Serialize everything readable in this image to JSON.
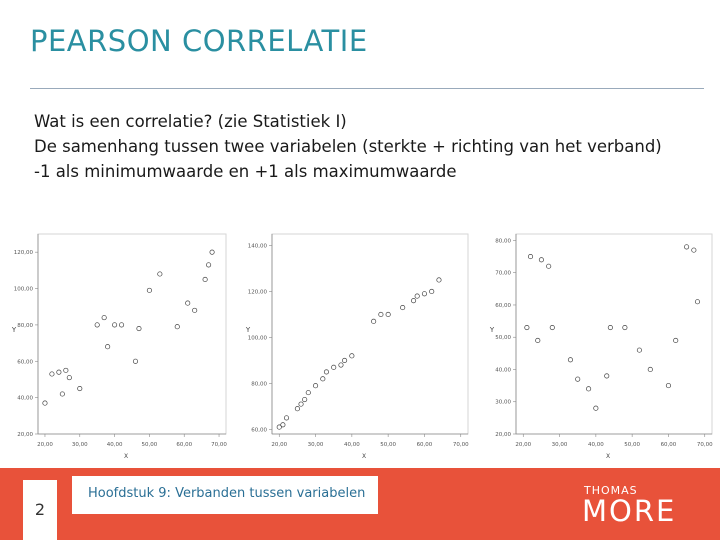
{
  "slide": {
    "title": "PEARSON CORRELATIE",
    "bullets": [
      "Wat is een correlatie? (zie Statistiek I)",
      "De samenhang tussen twee variabelen (sterkte + richting van het verband)",
      "-1 als minimumwaarde en +1 als maximumwaarde"
    ]
  },
  "chart_data": [
    {
      "type": "scatter",
      "xlabel": "X",
      "ylabel": "Y",
      "xticks": [
        "20,00",
        "30,00",
        "40,00",
        "50,00",
        "60,00",
        "70,00"
      ],
      "yticks": [
        "20,00",
        "40,00",
        "60,00",
        "80,00",
        "100,00",
        "120,00"
      ],
      "xlim": [
        18,
        72
      ],
      "ylim": [
        20,
        130
      ],
      "points": [
        [
          20,
          37
        ],
        [
          22,
          53
        ],
        [
          24,
          54
        ],
        [
          25,
          42
        ],
        [
          26,
          55
        ],
        [
          27,
          51
        ],
        [
          30,
          45
        ],
        [
          35,
          80
        ],
        [
          37,
          84
        ],
        [
          38,
          68
        ],
        [
          40,
          80
        ],
        [
          42,
          80
        ],
        [
          46,
          60
        ],
        [
          47,
          78
        ],
        [
          50,
          99
        ],
        [
          53,
          108
        ],
        [
          58,
          79
        ],
        [
          61,
          92
        ],
        [
          63,
          88
        ],
        [
          66,
          105
        ],
        [
          67,
          113
        ],
        [
          68,
          120
        ]
      ]
    },
    {
      "type": "scatter",
      "xlabel": "X",
      "ylabel": "Y",
      "xticks": [
        "20,00",
        "30,00",
        "40,00",
        "50,00",
        "60,00",
        "70,00"
      ],
      "yticks": [
        "60,00",
        "80,00",
        "100,00",
        "120,00",
        "140,00"
      ],
      "xlim": [
        18,
        72
      ],
      "ylim": [
        58,
        145
      ],
      "points": [
        [
          20,
          61
        ],
        [
          21,
          62
        ],
        [
          22,
          65
        ],
        [
          25,
          69
        ],
        [
          26,
          71
        ],
        [
          27,
          73
        ],
        [
          28,
          76
        ],
        [
          30,
          79
        ],
        [
          32,
          82
        ],
        [
          33,
          85
        ],
        [
          35,
          87
        ],
        [
          37,
          88
        ],
        [
          38,
          90
        ],
        [
          40,
          92
        ],
        [
          46,
          107
        ],
        [
          48,
          110
        ],
        [
          50,
          110
        ],
        [
          54,
          113
        ],
        [
          57,
          116
        ],
        [
          58,
          118
        ],
        [
          60,
          119
        ],
        [
          62,
          120
        ],
        [
          64,
          125
        ]
      ]
    },
    {
      "type": "scatter",
      "xlabel": "X",
      "ylabel": "Y",
      "xticks": [
        "20,00",
        "30,00",
        "40,00",
        "50,00",
        "60,00",
        "70,00"
      ],
      "yticks": [
        "20,00",
        "30,00",
        "40,00",
        "50,00",
        "60,00",
        "70,00",
        "80,00"
      ],
      "xlim": [
        18,
        72
      ],
      "ylim": [
        20,
        82
      ],
      "points": [
        [
          21,
          53
        ],
        [
          22,
          75
        ],
        [
          24,
          49
        ],
        [
          25,
          74
        ],
        [
          27,
          72
        ],
        [
          28,
          53
        ],
        [
          33,
          43
        ],
        [
          35,
          37
        ],
        [
          38,
          34
        ],
        [
          40,
          28
        ],
        [
          43,
          38
        ],
        [
          44,
          53
        ],
        [
          48,
          53
        ],
        [
          52,
          46
        ],
        [
          55,
          40
        ],
        [
          60,
          35
        ],
        [
          62,
          49
        ],
        [
          65,
          78
        ],
        [
          67,
          77
        ],
        [
          68,
          61
        ]
      ]
    }
  ],
  "footer": {
    "page_number": "2",
    "chapter": "Hoofdstuk 9: Verbanden tussen variabelen",
    "logo_small": "THOMAS",
    "logo_big": "MORE"
  },
  "colors": {
    "title": "#2a8fa1",
    "footer_bg": "#e8523a",
    "footnote_text": "#2a6f95"
  }
}
